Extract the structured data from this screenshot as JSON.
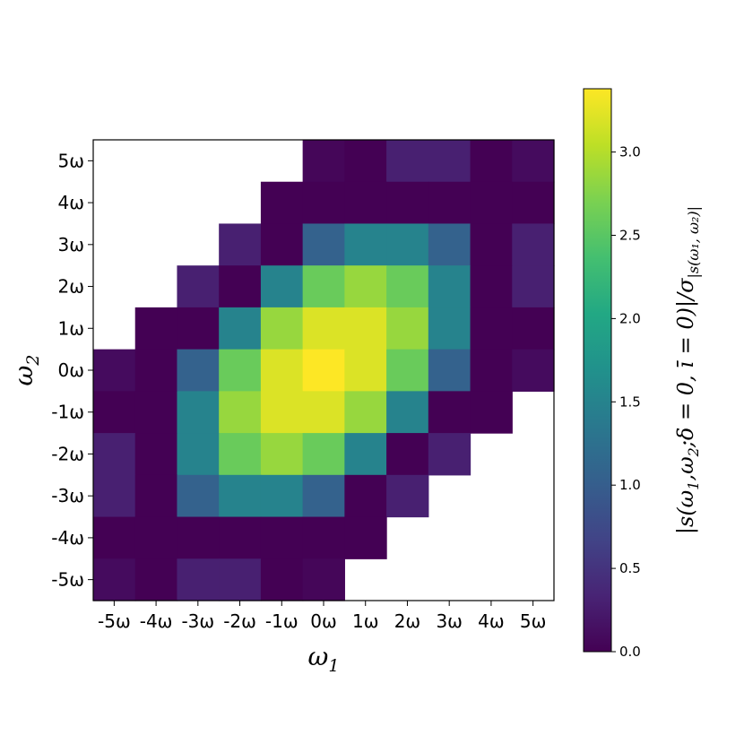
{
  "chart_data": {
    "type": "heatmap",
    "title": "",
    "xlabel": "ω1",
    "ylabel": "ω2",
    "x_ticks": [
      "-5ω",
      "-4ω",
      "-3ω",
      "-2ω",
      "-1ω",
      "0ω",
      "1ω",
      "2ω",
      "3ω",
      "4ω",
      "5ω"
    ],
    "y_ticks": [
      "-5ω",
      "-4ω",
      "-3ω",
      "-2ω",
      "-1ω",
      "0ω",
      "1ω",
      "2ω",
      "3ω",
      "4ω",
      "5ω"
    ],
    "colorbar": {
      "label": "|s(ω1,ω2;δ=0,ī=0)|/σ|s(ω1,ω2)|",
      "ticks": [
        "0.0",
        "0.5",
        "1.0",
        "1.5",
        "2.0",
        "2.5",
        "3.0"
      ],
      "tick_values": [
        0,
        0.5,
        1.0,
        1.5,
        2.0,
        2.5,
        3.0
      ],
      "range": [
        0,
        3.38
      ],
      "colormap": "viridis"
    },
    "rows_top_to_bottom": [
      [
        null,
        null,
        null,
        null,
        null,
        0.05,
        0.0,
        0.3,
        0.3,
        0.0,
        0.1
      ],
      [
        null,
        null,
        null,
        null,
        0.0,
        0.0,
        0.0,
        0.0,
        0.0,
        0.0,
        0.0
      ],
      [
        null,
        null,
        null,
        0.3,
        0.0,
        1.05,
        1.5,
        1.5,
        1.05,
        0.0,
        0.3
      ],
      [
        null,
        null,
        0.3,
        0.0,
        1.5,
        2.6,
        2.85,
        2.6,
        1.5,
        0.0,
        0.3
      ],
      [
        null,
        0.0,
        0.0,
        1.5,
        2.85,
        3.2,
        3.2,
        2.85,
        1.5,
        0.0,
        0.0
      ],
      [
        0.1,
        0.0,
        1.05,
        2.6,
        3.2,
        3.38,
        3.2,
        2.6,
        1.05,
        0.0,
        0.1
      ],
      [
        0.0,
        0.0,
        1.5,
        2.85,
        3.2,
        3.2,
        2.85,
        1.5,
        0.0,
        0.0,
        null
      ],
      [
        0.3,
        0.0,
        1.5,
        2.6,
        2.85,
        2.6,
        1.5,
        0.0,
        0.3,
        null,
        null
      ],
      [
        0.3,
        0.0,
        1.05,
        1.5,
        1.5,
        1.05,
        0.0,
        0.3,
        null,
        null,
        null
      ],
      [
        0.0,
        0.0,
        0.0,
        0.0,
        0.0,
        0.0,
        0.0,
        null,
        null,
        null,
        null
      ],
      [
        0.1,
        0.0,
        0.3,
        0.3,
        0.0,
        0.05,
        null,
        null,
        null,
        null,
        null
      ]
    ]
  }
}
